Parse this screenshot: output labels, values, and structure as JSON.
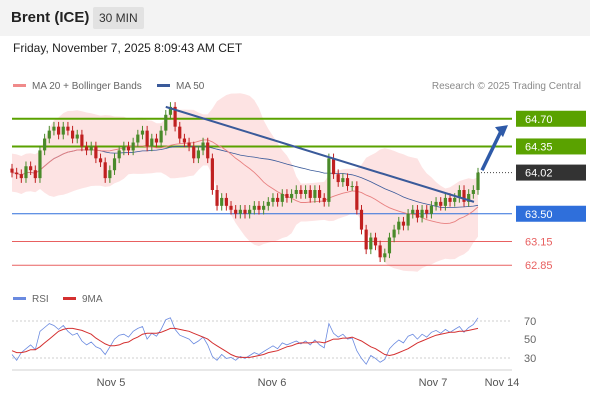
{
  "header": {
    "title": "Brent (ICE)",
    "timeframe": "30 MIN",
    "datetime": "Friday, November 7, 2025 8:09:43 AM CET"
  },
  "legend": {
    "ma20": "MA 20 + Bollinger Bands",
    "ma50": "MA 50",
    "copyright": "Research © 2025 Trading Central",
    "rsi": "RSI",
    "rsi_ma": "9MA"
  },
  "colors": {
    "resistance": "#5aa200",
    "support": "#2f6fdb",
    "pivot": "#333333",
    "level_red": "#e86060",
    "trendline": "#3a5a9a",
    "arrow": "#2e5aa8",
    "candle_up": "#4a8a2a",
    "candle_down": "#c02020",
    "ma20": "#e88080",
    "ma50": "#3a5a9a",
    "bollinger_fill": "#fde3e3",
    "rsi_line": "#6a8ae0",
    "rsi_ma_line": "#d43030"
  },
  "chart_data": [
    {
      "type": "candlestick",
      "title": "Brent (ICE)",
      "x_ticks": [
        "Nov 5",
        "Nov 6",
        "Nov 7",
        "Nov 14"
      ],
      "ylim": [
        62.6,
        65.0
      ],
      "levels": [
        {
          "value": 64.7,
          "label": "64.70",
          "kind": "resistance"
        },
        {
          "value": 64.35,
          "label": "64.35",
          "kind": "resistance"
        },
        {
          "value": 64.02,
          "label": "64.02",
          "kind": "last"
        },
        {
          "value": 63.5,
          "label": "63.50",
          "kind": "support"
        },
        {
          "value": 63.15,
          "label": "63.15",
          "kind": "minor"
        },
        {
          "value": 62.85,
          "label": "62.85",
          "kind": "minor"
        }
      ],
      "closes": [
        64.02,
        64.0,
        63.95,
        64.1,
        64.05,
        63.95,
        64.3,
        64.45,
        64.55,
        64.6,
        64.5,
        64.6,
        64.55,
        64.45,
        64.5,
        64.35,
        64.3,
        64.35,
        64.2,
        64.15,
        63.95,
        64.05,
        64.2,
        64.3,
        64.35,
        64.3,
        64.4,
        64.5,
        64.55,
        64.35,
        64.45,
        64.4,
        64.55,
        64.75,
        64.85,
        64.6,
        64.45,
        64.4,
        64.35,
        64.2,
        64.3,
        64.4,
        64.2,
        63.8,
        63.6,
        63.7,
        63.6,
        63.55,
        63.5,
        63.55,
        63.5,
        63.55,
        63.6,
        63.55,
        63.6,
        63.65,
        63.7,
        63.65,
        63.75,
        63.7,
        63.75,
        63.8,
        63.75,
        63.8,
        63.7,
        63.8,
        63.7,
        63.65,
        64.2,
        64.0,
        63.9,
        63.95,
        63.85,
        63.85,
        63.55,
        63.3,
        63.05,
        63.2,
        63.1,
        62.95,
        63.0,
        63.2,
        63.3,
        63.4,
        63.35,
        63.5,
        63.55,
        63.45,
        63.55,
        63.5,
        63.6,
        63.65,
        63.6,
        63.7,
        63.65,
        63.7,
        63.8,
        63.65,
        63.75,
        63.8,
        64.02
      ],
      "ma_labels": [
        "MA 20 + Bollinger Bands",
        "MA 50"
      ]
    },
    {
      "type": "line",
      "title": "",
      "y_ticks": [
        70,
        50,
        30
      ],
      "ylim": [
        18,
        78
      ],
      "series": [
        {
          "name": "RSI",
          "values": [
            34,
            28,
            36,
            40,
            44,
            39,
            58,
            62,
            66,
            64,
            60,
            64,
            58,
            54,
            56,
            48,
            44,
            47,
            42,
            40,
            34,
            42,
            50,
            54,
            55,
            52,
            58,
            61,
            63,
            50,
            56,
            53,
            60,
            70,
            72,
            60,
            54,
            52,
            50,
            45,
            48,
            52,
            44,
            32,
            28,
            34,
            30,
            31,
            28,
            32,
            30,
            33,
            36,
            34,
            37,
            40,
            43,
            40,
            46,
            44,
            46,
            48,
            45,
            48,
            44,
            49,
            44,
            41,
            66,
            56,
            52,
            55,
            50,
            51,
            38,
            30,
            24,
            33,
            30,
            26,
            29,
            40,
            45,
            49,
            46,
            53,
            55,
            50,
            55,
            52,
            57,
            59,
            56,
            60,
            57,
            60,
            63,
            57,
            62,
            65,
            72
          ]
        },
        {
          "name": "9MA",
          "values": [
            38,
            36,
            36,
            37,
            39,
            39,
            42,
            46,
            50,
            54,
            58,
            60,
            61,
            61,
            60,
            59,
            57,
            55,
            51,
            48,
            45,
            43,
            43,
            44,
            46,
            47,
            50,
            52,
            55,
            56,
            56,
            56,
            57,
            59,
            61,
            61,
            60,
            59,
            58,
            56,
            54,
            52,
            50,
            46,
            43,
            40,
            37,
            34,
            32,
            31,
            31,
            31,
            32,
            33,
            34,
            36,
            37,
            38,
            40,
            42,
            43,
            45,
            46,
            46,
            46,
            47,
            47,
            46,
            48,
            50,
            50,
            51,
            51,
            52,
            50,
            48,
            45,
            42,
            40,
            37,
            34,
            33,
            34,
            36,
            38,
            40,
            43,
            46,
            48,
            50,
            52,
            54,
            55,
            56,
            57,
            57,
            58,
            58,
            59,
            60,
            61
          ]
        }
      ]
    }
  ]
}
